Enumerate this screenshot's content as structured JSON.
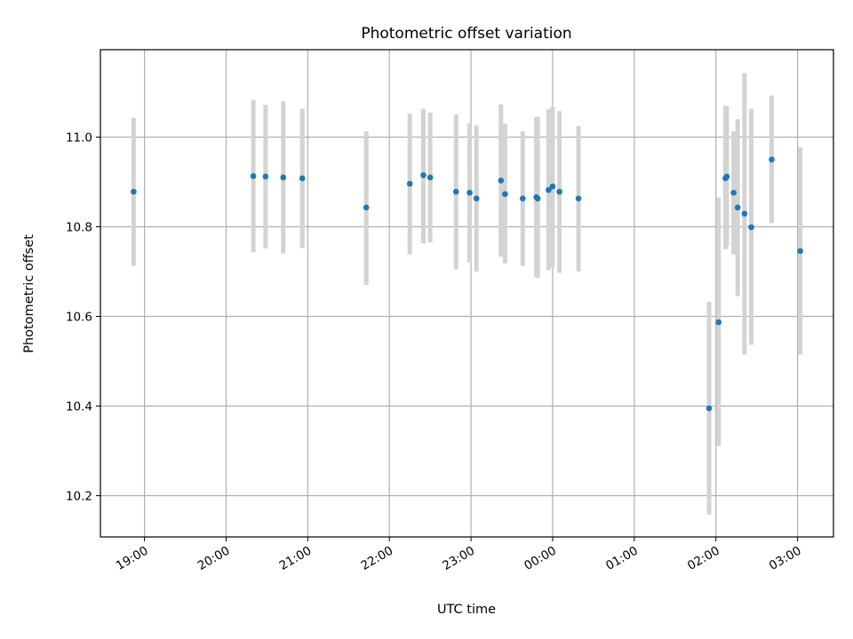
{
  "chart_data": {
    "type": "scatter",
    "title": "Photometric offset variation",
    "xlabel": "UTC time",
    "ylabel": "Photometric offset",
    "x_tick_labels": [
      "19:00",
      "20:00",
      "21:00",
      "22:00",
      "23:00",
      "00:00",
      "01:00",
      "02:00",
      "03:00"
    ],
    "x_tick_hours": [
      19,
      20,
      21,
      22,
      23,
      24,
      25,
      26,
      27
    ],
    "y_tick_labels": [
      "10.2",
      "10.4",
      "10.6",
      "10.8",
      "11.0"
    ],
    "y_ticks": [
      10.2,
      10.4,
      10.6,
      10.8,
      11.0
    ],
    "xlim_hours": [
      18.46,
      27.44
    ],
    "ylim": [
      10.108,
      11.195
    ],
    "grid": true,
    "marker_color": "#1f77b4",
    "errorbar_color": "#d3d3d3",
    "series": [
      {
        "points": [
          {
            "t": "18:52",
            "y": 10.878,
            "lo": 10.713,
            "hi": 11.043
          },
          {
            "t": "20:20",
            "y": 10.913,
            "lo": 10.743,
            "hi": 11.083
          },
          {
            "t": "20:29",
            "y": 10.912,
            "lo": 10.752,
            "hi": 11.072
          },
          {
            "t": "20:42",
            "y": 10.91,
            "lo": 10.74,
            "hi": 11.08
          },
          {
            "t": "20:56",
            "y": 10.908,
            "lo": 10.753,
            "hi": 11.063
          },
          {
            "t": "21:43",
            "y": 10.843,
            "lo": 10.67,
            "hi": 11.013
          },
          {
            "t": "22:15",
            "y": 10.896,
            "lo": 10.738,
            "hi": 11.053
          },
          {
            "t": "22:25",
            "y": 10.915,
            "lo": 10.763,
            "hi": 11.063
          },
          {
            "t": "22:30",
            "y": 10.91,
            "lo": 10.765,
            "hi": 11.055
          },
          {
            "t": "22:49",
            "y": 10.878,
            "lo": 10.705,
            "hi": 11.051
          },
          {
            "t": "22:59",
            "y": 10.876,
            "lo": 10.72,
            "hi": 11.031
          },
          {
            "t": "23:04",
            "y": 10.863,
            "lo": 10.7,
            "hi": 11.026
          },
          {
            "t": "23:22",
            "y": 10.903,
            "lo": 10.733,
            "hi": 11.073
          },
          {
            "t": "23:25",
            "y": 10.873,
            "lo": 10.718,
            "hi": 11.03
          },
          {
            "t": "23:38",
            "y": 10.863,
            "lo": 10.713,
            "hi": 11.013
          },
          {
            "t": "23:48",
            "y": 10.866,
            "lo": 10.688,
            "hi": 11.045
          },
          {
            "t": "23:49",
            "y": 10.863,
            "lo": 10.686,
            "hi": 11.045
          },
          {
            "t": "23:57",
            "y": 10.882,
            "lo": 10.703,
            "hi": 11.062
          },
          {
            "t": "24:00",
            "y": 10.89,
            "lo": 10.71,
            "hi": 11.068
          },
          {
            "t": "24:05",
            "y": 10.878,
            "lo": 10.697,
            "hi": 11.058
          },
          {
            "t": "24:19",
            "y": 10.863,
            "lo": 10.7,
            "hi": 11.025
          },
          {
            "t": "25:55",
            "y": 10.395,
            "lo": 10.158,
            "hi": 10.633
          },
          {
            "t": "26:02",
            "y": 10.587,
            "lo": 10.311,
            "hi": 10.865
          },
          {
            "t": "26:07",
            "y": 10.908,
            "lo": 10.75,
            "hi": 11.07
          },
          {
            "t": "26:08",
            "y": 10.912,
            "lo": 10.756,
            "hi": 11.068
          },
          {
            "t": "26:13",
            "y": 10.876,
            "lo": 10.738,
            "hi": 11.013
          },
          {
            "t": "26:16",
            "y": 10.843,
            "lo": 10.645,
            "hi": 11.04
          },
          {
            "t": "26:21",
            "y": 10.829,
            "lo": 10.515,
            "hi": 11.143
          },
          {
            "t": "26:26",
            "y": 10.799,
            "lo": 10.537,
            "hi": 11.063
          },
          {
            "t": "26:41",
            "y": 10.95,
            "lo": 10.808,
            "hi": 11.093
          },
          {
            "t": "27:02",
            "y": 10.746,
            "lo": 10.515,
            "hi": 10.977
          }
        ]
      }
    ]
  }
}
